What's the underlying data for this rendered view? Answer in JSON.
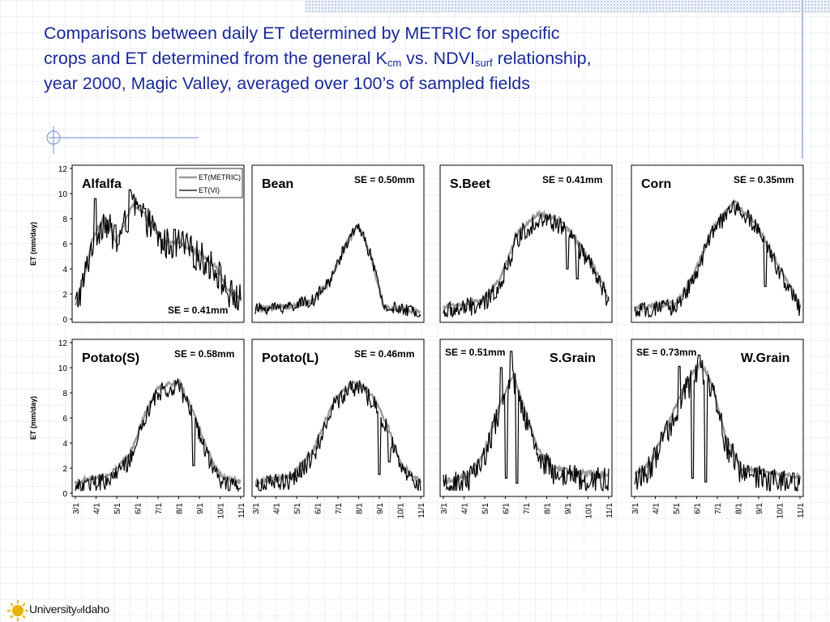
{
  "title": {
    "part1": "Comparisons between daily ET determined by METRIC for specific crops and ET determined from the general K",
    "sub1": "cm",
    "part2": " vs. NDVI",
    "sub2": "surf",
    "part3": " relationship, year 2000, Magic Valley, averaged over 100’s of sampled fields"
  },
  "logo": {
    "pre": "University",
    "of": "of",
    "post": "Idaho"
  },
  "colors": {
    "title": "#1a2a99",
    "metric": "#9a9a9a",
    "vi": "#000000"
  },
  "chart_data": {
    "type": "line",
    "y_label": "ET (mm/day)",
    "ylim": [
      0,
      12
    ],
    "y_ticks": [
      "0",
      "2",
      "4",
      "6",
      "8",
      "10",
      "12"
    ],
    "x_ticks": [
      "3/1",
      "4/1",
      "5/1",
      "6/1",
      "7/1",
      "8/1",
      "9/1",
      "10/1",
      "11/1"
    ],
    "legend": {
      "placement": "top-right",
      "entries": [
        "ET(METRIC)",
        "ET(VI)"
      ]
    },
    "panels": [
      {
        "name": "Alfalfa",
        "se": "SE = 0.41mm",
        "se_pos": "bottom-right",
        "legend": true,
        "peak": [
          [
            0,
            1
          ],
          [
            10,
            3
          ],
          [
            20,
            6
          ],
          [
            35,
            8
          ],
          [
            50,
            6
          ],
          [
            70,
            9
          ],
          [
            85,
            8
          ],
          [
            105,
            6
          ],
          [
            125,
            6
          ],
          [
            150,
            5
          ],
          [
            170,
            4
          ],
          [
            185,
            2
          ],
          [
            200,
            1.5
          ]
        ],
        "metric_offset": 0.2,
        "noise": 1.3,
        "spikes": [
          [
            24,
            9.6
          ],
          [
            66,
            10.3
          ],
          [
            84,
            8.8
          ],
          [
            48,
            7.5
          ]
        ]
      },
      {
        "name": "Bean",
        "se": "SE = 0.50mm",
        "se_pos": "top-right",
        "legend": false,
        "peak": [
          [
            0,
            0.8
          ],
          [
            40,
            1
          ],
          [
            70,
            1.5
          ],
          [
            90,
            3
          ],
          [
            110,
            6
          ],
          [
            125,
            7.5
          ],
          [
            140,
            5
          ],
          [
            155,
            1
          ],
          [
            200,
            0.5
          ]
        ],
        "metric_offset": 0,
        "noise": 0.5,
        "spikes": []
      },
      {
        "name": "S.Beet",
        "se": "SE = 0.41mm",
        "se_pos": "top-right",
        "legend": false,
        "peak": [
          [
            0,
            0.5
          ],
          [
            50,
            1.2
          ],
          [
            70,
            3
          ],
          [
            90,
            6.5
          ],
          [
            115,
            8
          ],
          [
            140,
            7.5
          ],
          [
            160,
            6
          ],
          [
            180,
            4
          ],
          [
            195,
            2
          ],
          [
            200,
            1
          ]
        ],
        "metric_offset": 0.4,
        "noise": 0.8,
        "spikes": [
          [
            150,
            4
          ],
          [
            162,
            3.2
          ]
        ]
      },
      {
        "name": "Corn",
        "se": "SE = 0.35mm",
        "se_pos": "top-right",
        "legend": false,
        "peak": [
          [
            0,
            0.5
          ],
          [
            50,
            1
          ],
          [
            70,
            3
          ],
          [
            95,
            7
          ],
          [
            120,
            9
          ],
          [
            145,
            7.5
          ],
          [
            170,
            4.5
          ],
          [
            190,
            2
          ],
          [
            200,
            0.8
          ]
        ],
        "metric_offset": 0.3,
        "noise": 0.7,
        "spikes": [
          [
            158,
            2.6
          ]
        ]
      },
      {
        "name": "Potato(S)",
        "se": "SE = 0.58mm",
        "se_pos": "top-right",
        "legend": false,
        "peak": [
          [
            0,
            0.5
          ],
          [
            40,
            1
          ],
          [
            65,
            2.5
          ],
          [
            85,
            6
          ],
          [
            100,
            8
          ],
          [
            125,
            8.5
          ],
          [
            140,
            6.5
          ],
          [
            160,
            3
          ],
          [
            175,
            1
          ],
          [
            200,
            0.5
          ]
        ],
        "metric_offset": 0.4,
        "noise": 0.7,
        "spikes": [
          [
            143,
            2.2
          ]
        ]
      },
      {
        "name": "Potato(L)",
        "se": "SE = 0.46mm",
        "se_pos": "top-right",
        "legend": false,
        "peak": [
          [
            0,
            0.5
          ],
          [
            45,
            1
          ],
          [
            70,
            3
          ],
          [
            95,
            7
          ],
          [
            120,
            8.5
          ],
          [
            140,
            7.5
          ],
          [
            160,
            5
          ],
          [
            175,
            2
          ],
          [
            200,
            0.5
          ]
        ],
        "metric_offset": 0.4,
        "noise": 0.8,
        "spikes": [
          [
            150,
            1.5
          ],
          [
            162,
            2.5
          ]
        ]
      },
      {
        "name": "S.Grain",
        "se": "SE = 0.51mm",
        "se_pos": "top-left",
        "legend": false,
        "peak": [
          [
            0,
            0.5
          ],
          [
            30,
            1
          ],
          [
            50,
            3
          ],
          [
            70,
            7
          ],
          [
            85,
            9
          ],
          [
            100,
            6
          ],
          [
            115,
            3
          ],
          [
            135,
            1.5
          ],
          [
            200,
            1
          ]
        ],
        "metric_offset": 0.4,
        "noise": 1.0,
        "spikes": [
          [
            82,
            11.3
          ],
          [
            76,
            1.2
          ],
          [
            70,
            10
          ],
          [
            89,
            0.8
          ]
        ]
      },
      {
        "name": "W.Grain",
        "se": "SE = 0.73mm",
        "se_pos": "top-left",
        "legend": false,
        "peak": [
          [
            0,
            1
          ],
          [
            20,
            2
          ],
          [
            40,
            5
          ],
          [
            60,
            8
          ],
          [
            80,
            10
          ],
          [
            95,
            8
          ],
          [
            110,
            4
          ],
          [
            130,
            1.5
          ],
          [
            200,
            0.8
          ]
        ],
        "metric_offset": 0.5,
        "noise": 1.1,
        "spikes": [
          [
            78,
            11
          ],
          [
            54,
            10.1
          ],
          [
            70,
            1.2
          ],
          [
            86,
            0.9
          ]
        ]
      }
    ]
  }
}
